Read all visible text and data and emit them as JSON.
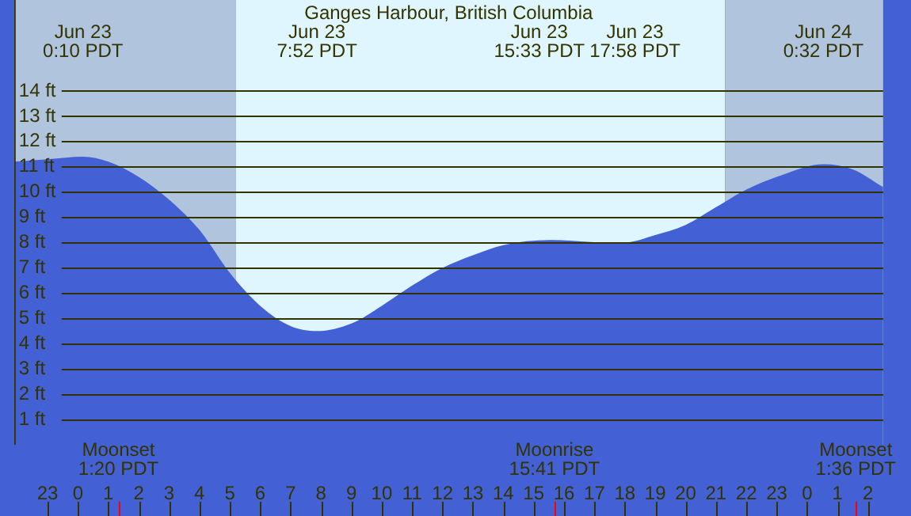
{
  "chart_data": {
    "type": "area",
    "title": "Ganges Harbour, British Columbia",
    "series": [
      {
        "color": "#4361d4",
        "x": [
          "--06-22T21:54",
          "--06-22T23:00",
          "--06-23T00:10",
          "--06-23T01:00",
          "--06-23T02:00",
          "--06-23T03:00",
          "--06-23T04:00",
          "--06-23T05:00",
          "--06-23T06:00",
          "--06-23T07:00",
          "--06-23T07:52",
          "--06-23T09:00",
          "--06-23T10:00",
          "--06-23T11:00",
          "--06-23T12:00",
          "--06-23T13:00",
          "--06-23T14:00",
          "--06-23T15:33",
          "--06-23T17:00",
          "--06-23T17:58",
          "--06-23T19:00",
          "--06-23T20:00",
          "--06-23T21:00",
          "--06-23T22:00",
          "--06-23T23:00",
          "--06-24T00:32",
          "--06-24T01:30",
          "--06-24T02:30"
        ],
        "values": [
          11.2,
          11.3,
          11.4,
          11.2,
          10.6,
          9.7,
          8.5,
          6.8,
          5.5,
          4.7,
          4.5,
          4.8,
          5.5,
          6.3,
          7.0,
          7.5,
          7.9,
          8.1,
          8.02,
          8.0,
          8.3,
          8.7,
          9.4,
          10.1,
          10.6,
          11.1,
          10.9,
          10.2
        ]
      }
    ],
    "xlim": [
      "--06-22T21:54",
      "--06-24T02:30"
    ],
    "xticks": [
      {
        "value": "--06-22T23:00",
        "label": "23"
      },
      {
        "value": "--06-23T00:00",
        "label": "0"
      },
      {
        "value": "--06-23T01:00",
        "label": "1"
      },
      {
        "value": "--06-23T02:00",
        "label": "2"
      },
      {
        "value": "--06-23T03:00",
        "label": "3"
      },
      {
        "value": "--06-23T04:00",
        "label": "4"
      },
      {
        "value": "--06-23T05:00",
        "label": "5"
      },
      {
        "value": "--06-23T06:00",
        "label": "6"
      },
      {
        "value": "--06-23T07:00",
        "label": "7"
      },
      {
        "value": "--06-23T08:00",
        "label": "8"
      },
      {
        "value": "--06-23T09:00",
        "label": "9"
      },
      {
        "value": "--06-23T10:00",
        "label": "10"
      },
      {
        "value": "--06-23T11:00",
        "label": "11"
      },
      {
        "value": "--06-23T12:00",
        "label": "12"
      },
      {
        "value": "--06-23T13:00",
        "label": "13"
      },
      {
        "value": "--06-23T14:00",
        "label": "14"
      },
      {
        "value": "--06-23T15:00",
        "label": "15"
      },
      {
        "value": "--06-23T16:00",
        "label": "16"
      },
      {
        "value": "--06-23T17:00",
        "label": "17"
      },
      {
        "value": "--06-23T18:00",
        "label": "18"
      },
      {
        "value": "--06-23T19:00",
        "label": "19"
      },
      {
        "value": "--06-23T20:00",
        "label": "20"
      },
      {
        "value": "--06-23T21:00",
        "label": "21"
      },
      {
        "value": "--06-23T22:00",
        "label": "22"
      },
      {
        "value": "--06-23T23:00",
        "label": "23"
      },
      {
        "value": "--06-24T00:00",
        "label": "0"
      },
      {
        "value": "--06-24T01:00",
        "label": "1"
      },
      {
        "value": "--06-24T02:00",
        "label": "2"
      }
    ],
    "ylim": [
      0,
      17.6
    ],
    "yticks": [
      {
        "value": 1,
        "label": "1 ft"
      },
      {
        "value": 2,
        "label": "2 ft"
      },
      {
        "value": 3,
        "label": "3 ft"
      },
      {
        "value": 4,
        "label": "4 ft"
      },
      {
        "value": 5,
        "label": "5 ft"
      },
      {
        "value": 6,
        "label": "6 ft"
      },
      {
        "value": 7,
        "label": "7 ft"
      },
      {
        "value": 8,
        "label": "8 ft"
      },
      {
        "value": 9,
        "label": "9 ft"
      },
      {
        "value": 10,
        "label": "10 ft"
      },
      {
        "value": 11,
        "label": "11 ft"
      },
      {
        "value": 12,
        "label": "12 ft"
      },
      {
        "value": 13,
        "label": "13 ft"
      },
      {
        "value": 14,
        "label": "14 ft"
      }
    ],
    "grid": "y",
    "legend": false,
    "bands": [
      {
        "axis": "x",
        "from": "--06-22T21:54",
        "to": "--06-23T05:12",
        "color": "#b0c4de"
      },
      {
        "axis": "x",
        "from": "--06-23T05:12",
        "to": "--06-23T21:18",
        "color": "#e0f6ff"
      },
      {
        "axis": "x",
        "from": "--06-23T21:18",
        "to": "--06-24T02:30",
        "color": "#b0c4de"
      }
    ],
    "ref_lines": [
      {
        "axis": "x",
        "value": "--06-23T01:20",
        "label": "Moonset\n1:20 PDT",
        "color": "#ff0000"
      },
      {
        "axis": "x",
        "value": "--06-23T15:41",
        "label": "Moonrise\n15:41 PDT",
        "color": "#ff0000"
      },
      {
        "axis": "x",
        "value": "--06-24T01:36",
        "label": "Moonset\n1:36 PDT",
        "color": "#ff0000"
      }
    ],
    "annotations": [
      "Jun 23\n0:10 PDT",
      "Jun 23\n7:52 PDT",
      "Jun 23\n15:33 PDT",
      "Jun 23\n17:58 PDT",
      "Jun 24\n0:32 PDT"
    ]
  }
}
